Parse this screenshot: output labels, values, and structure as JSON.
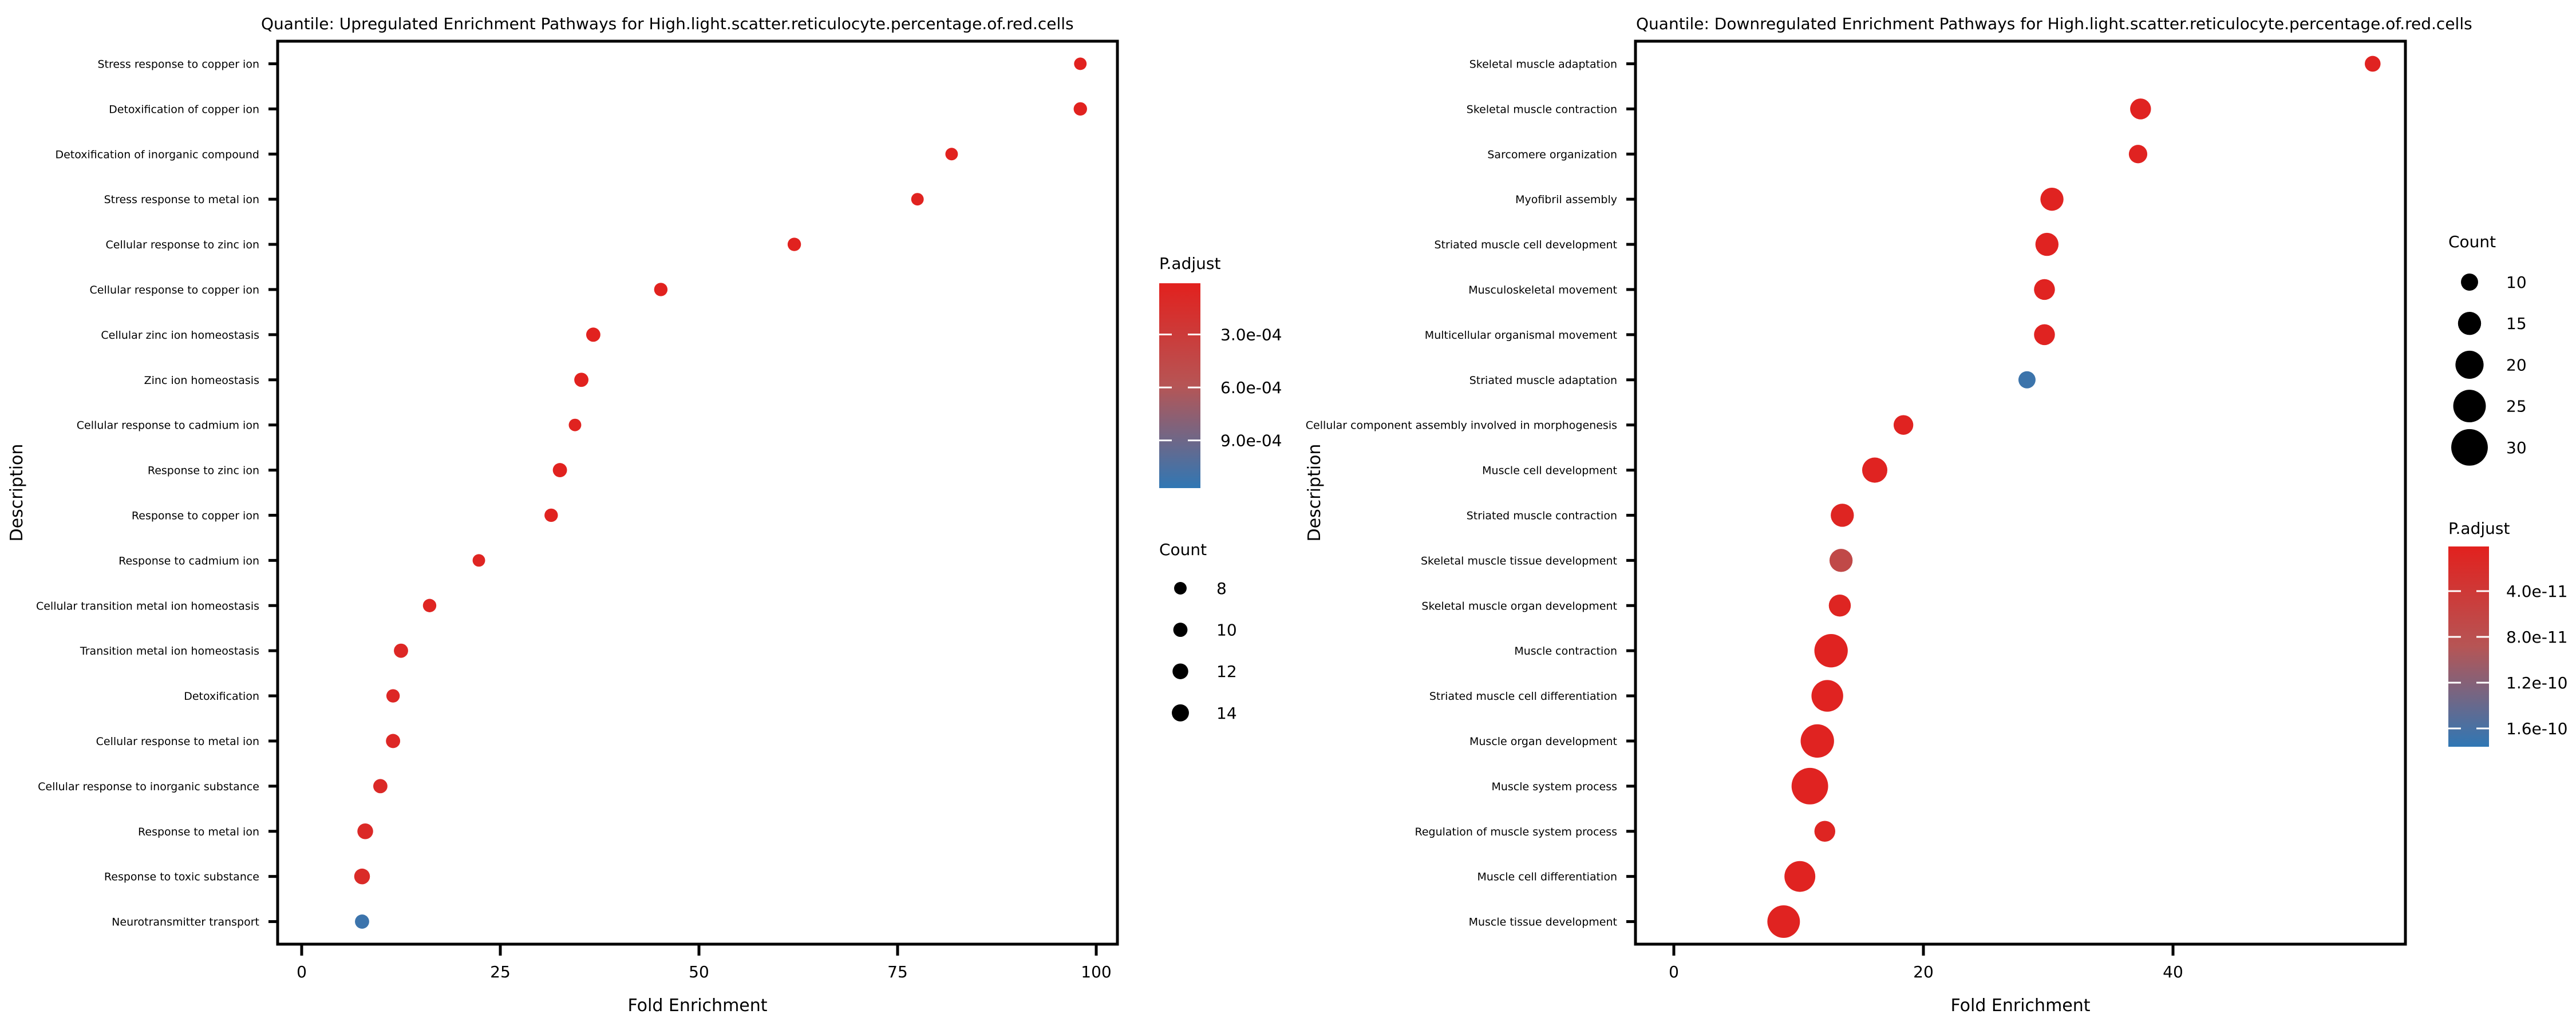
{
  "colors": {
    "background": "#ffffff",
    "text": "#000000",
    "panel_border": "#000000",
    "gradient_low_red": "#e2211e",
    "gradient_mid": "#b65555",
    "gradient_high_blue": "#3077b4",
    "legend_dot_black": "#000000"
  },
  "chart_data": [
    {
      "type": "scatter",
      "variant": "enrichment-dotplot",
      "title": "Quantile: Upregulated Enrichment Pathways for High.light.scatter.reticulocyte.percentage.of.red.cells",
      "xlabel": "Fold Enrichment",
      "ylabel": "Description",
      "x_ticks": [
        0,
        25,
        50,
        75,
        100
      ],
      "xlim": [
        -3,
        102.8
      ],
      "grid": false,
      "categories": [
        "Stress response to copper ion",
        "Detoxification of copper ion",
        "Detoxification of inorganic compound",
        "Stress response to metal ion",
        "Cellular response to zinc ion",
        "Cellular response to copper ion",
        "Cellular zinc ion homeostasis",
        "Zinc ion homeostasis",
        "Cellular response to cadmium ion",
        "Response to zinc ion",
        "Response to copper ion",
        "Response to cadmium ion",
        "Cellular transition metal ion homeostasis",
        "Transition metal ion homeostasis",
        "Detoxification",
        "Cellular response to metal ion",
        "Cellular response to inorganic substance",
        "Response to metal ion",
        "Response to toxic substance",
        "Neurotransmitter transport"
      ],
      "fold_enrichment": [
        98.0,
        98.0,
        81.8,
        77.5,
        62.0,
        45.2,
        36.7,
        35.2,
        34.4,
        32.5,
        31.4,
        22.3,
        16.1,
        12.5,
        11.5,
        11.5,
        9.9,
        8.0,
        7.6,
        7.6
      ],
      "count": [
        8,
        9,
        8,
        8,
        9,
        9,
        10,
        10,
        8,
        10,
        9,
        8,
        9,
        10,
        9,
        10,
        10,
        12,
        12,
        10
      ],
      "p_adjust": [
        2e-05,
        2e-05,
        2e-05,
        3e-05,
        2e-05,
        2e-05,
        2e-05,
        2e-05,
        3e-05,
        2e-05,
        3e-05,
        5e-05,
        5e-05,
        8e-05,
        8e-05,
        8e-05,
        0.0001,
        0.0001,
        0.00012,
        0.00112
      ],
      "legend_order": [
        "padjust",
        "count"
      ],
      "padjust_legend": {
        "title": "P.adjust",
        "tick_labels": [
          "3.0e-04",
          "6.0e-04",
          "9.0e-04"
        ],
        "tick_values": [
          0.0003,
          0.0006,
          0.0009
        ],
        "domain": [
          1e-05,
          0.00117
        ]
      },
      "count_legend": {
        "title": "Count",
        "items": [
          8,
          10,
          12,
          14
        ]
      }
    },
    {
      "type": "scatter",
      "variant": "enrichment-dotplot",
      "title": "Quantile: Downregulated Enrichment Pathways for High.light.scatter.reticulocyte.percentage.of.red.cells",
      "xlabel": "Fold Enrichment",
      "ylabel": "Description",
      "x_ticks": [
        0,
        20,
        40
      ],
      "xlim": [
        -3,
        58.6
      ],
      "grid": false,
      "categories": [
        "Skeletal muscle adaptation",
        "Skeletal muscle contraction",
        "Sarcomere organization",
        "Myofibril assembly",
        "Striated muscle cell development",
        "Musculoskeletal movement",
        "Multicellular organismal movement",
        "Striated muscle adaptation",
        "Cellular component assembly involved in morphogenesis",
        "Muscle cell development",
        "Striated muscle contraction",
        "Skeletal muscle tissue development",
        "Skeletal muscle organ development",
        "Muscle contraction",
        "Striated muscle cell differentiation",
        "Muscle organ development",
        "Muscle system process",
        "Regulation of muscle system process",
        "Muscle cell differentiation",
        "Muscle tissue development"
      ],
      "fold_enrichment": [
        56.0,
        37.4,
        37.2,
        30.3,
        29.9,
        29.7,
        29.7,
        28.3,
        18.4,
        16.1,
        13.5,
        13.4,
        13.3,
        12.6,
        12.3,
        11.5,
        10.9,
        12.1,
        10.1,
        8.8
      ],
      "count": [
        9,
        13,
        11,
        15,
        15,
        13,
        13,
        10,
        12,
        17,
        15,
        15,
        14,
        26,
        24,
        26,
        30,
        13,
        23,
        25
      ],
      "p_adjust": [
        5e-12,
        5e-12,
        5e-12,
        5e-12,
        5e-12,
        5e-12,
        5e-12,
        1.68e-10,
        5e-12,
        5e-12,
        8e-12,
        6.8e-11,
        8e-12,
        5e-12,
        5e-12,
        5e-12,
        5e-12,
        8e-12,
        5e-12,
        5e-12
      ],
      "legend_order": [
        "count",
        "padjust"
      ],
      "padjust_legend": {
        "title": "P.adjust",
        "tick_labels": [
          "4.0e-11",
          "8.0e-11",
          "1.2e-10",
          "1.6e-10"
        ],
        "tick_values": [
          4e-11,
          8e-11,
          1.2e-10,
          1.6e-10
        ],
        "domain": [
          1e-12,
          1.76e-10
        ]
      },
      "count_legend": {
        "title": "Count",
        "items": [
          10,
          15,
          20,
          25,
          30
        ]
      }
    }
  ]
}
